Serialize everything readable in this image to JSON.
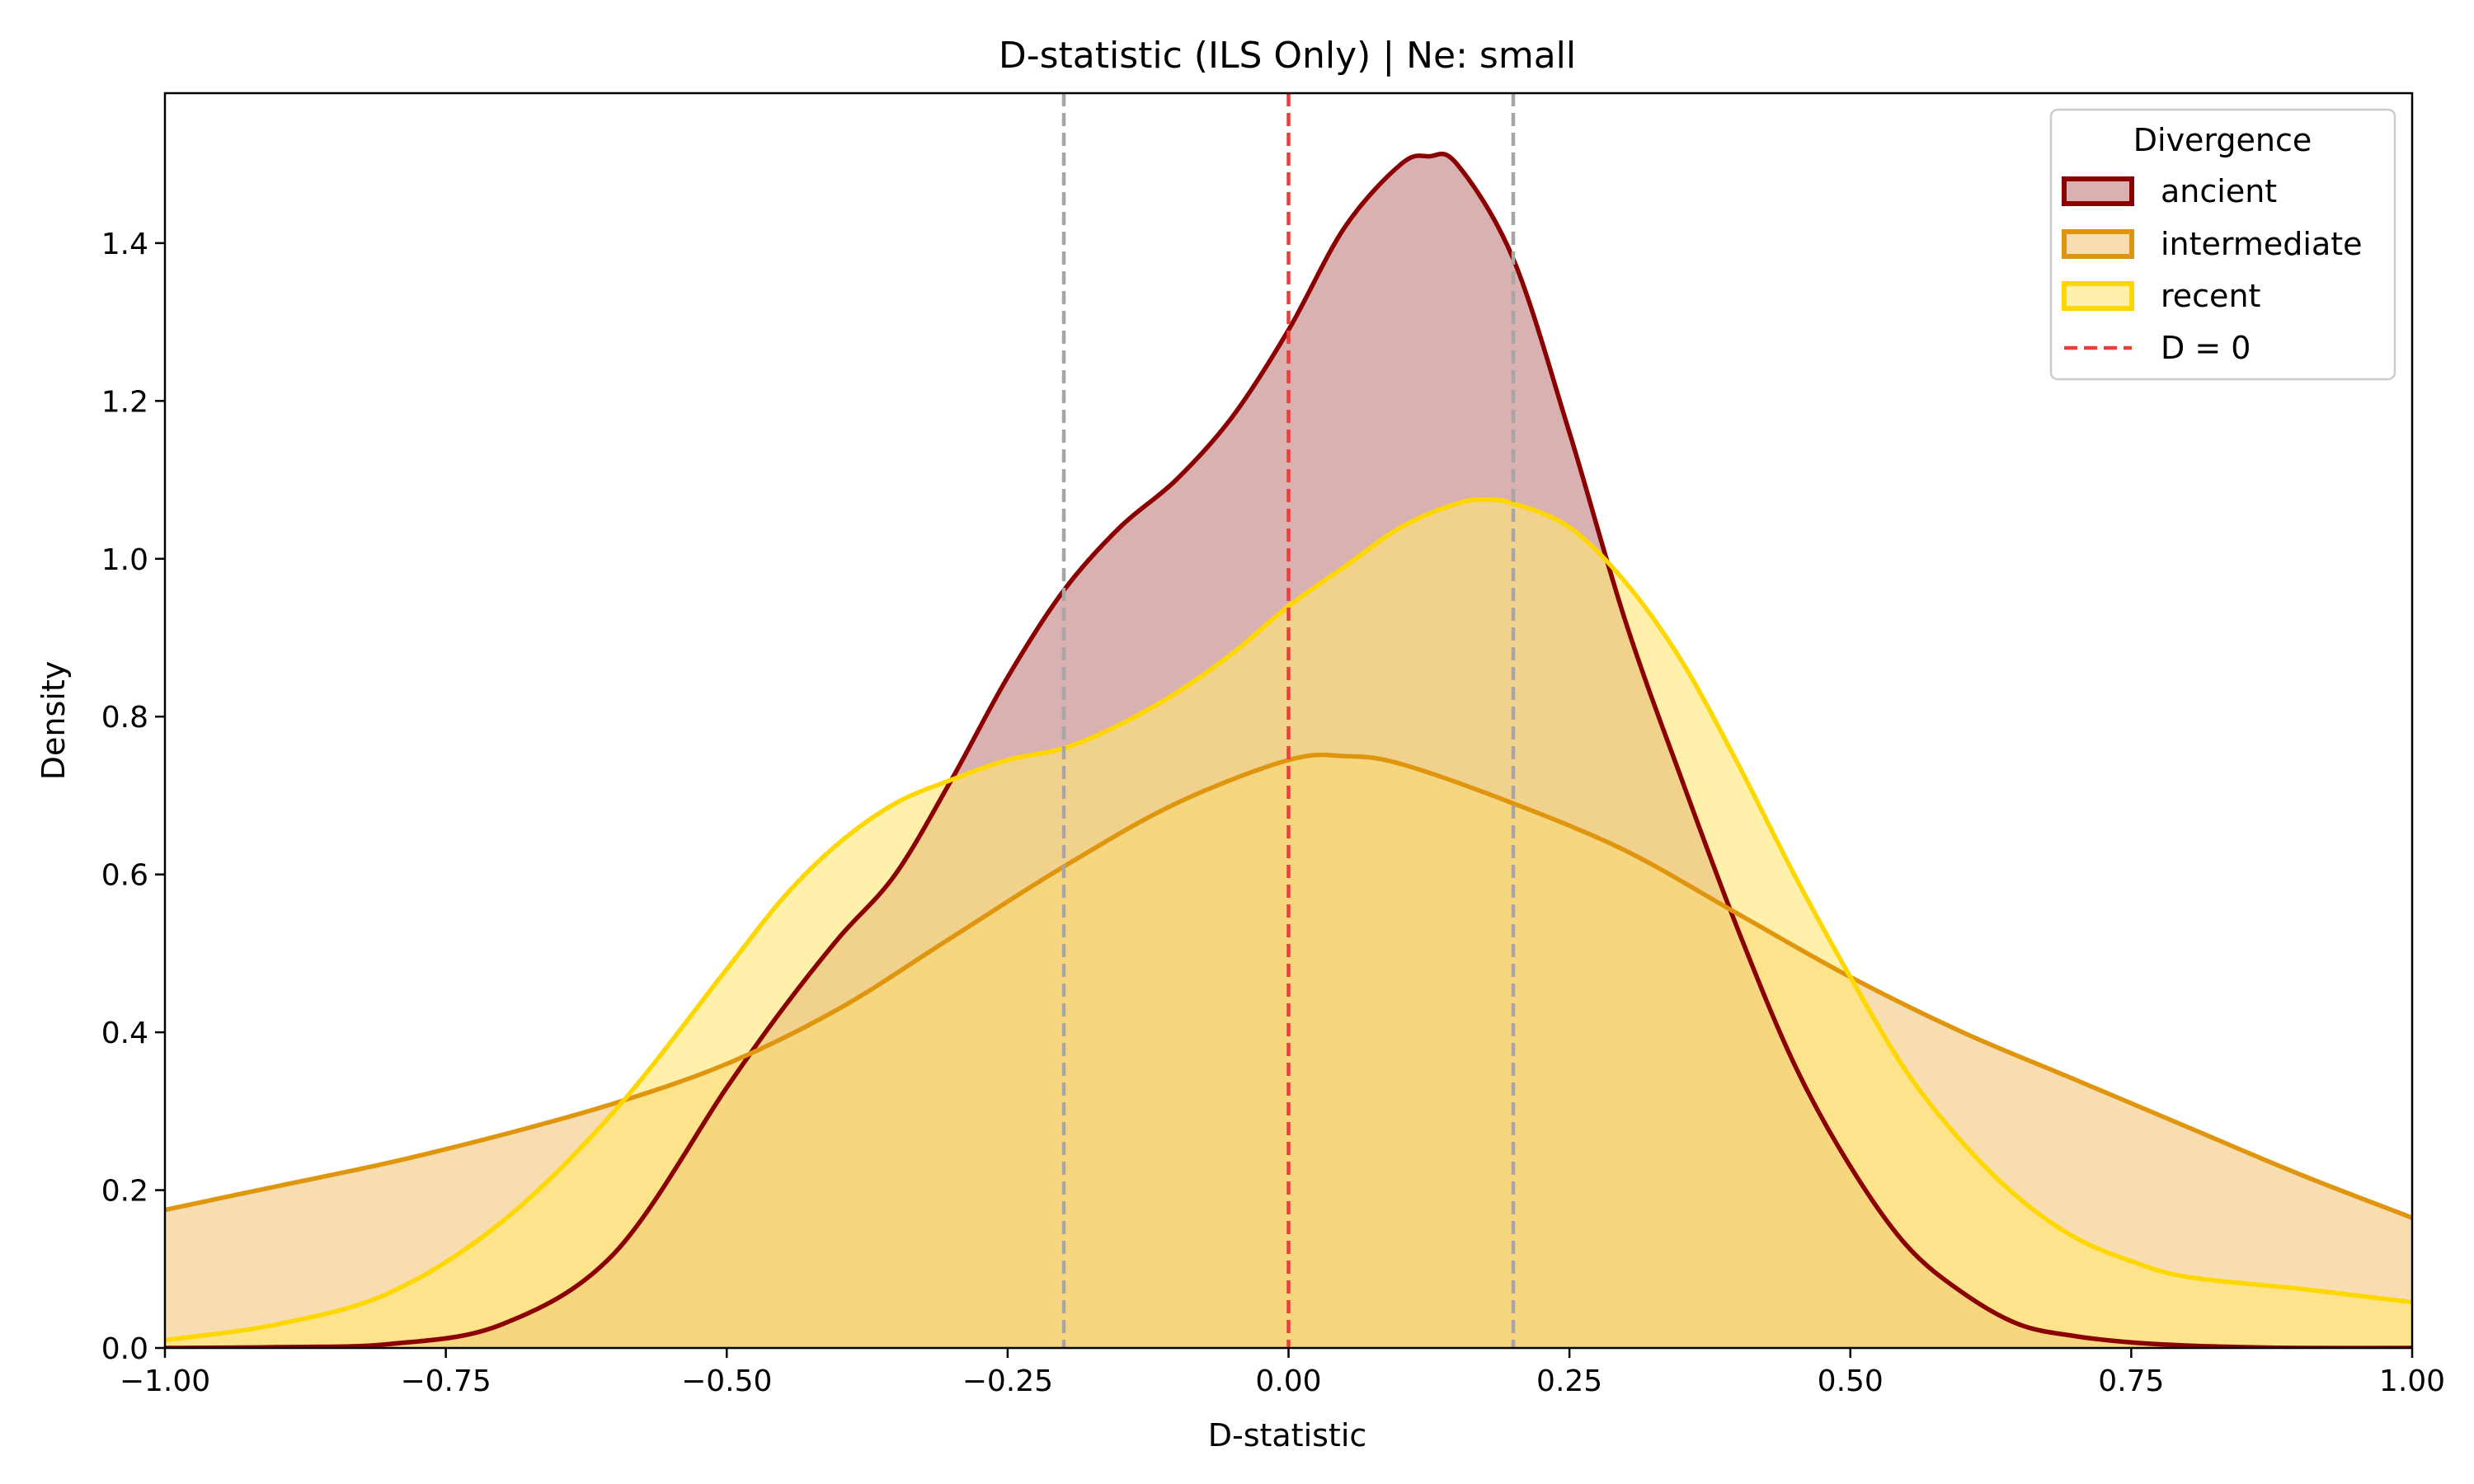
{
  "chart_data": {
    "type": "area",
    "title": "D-statistic (ILS Only) | Ne: small",
    "xlabel": "D-statistic",
    "ylabel": "Density",
    "xlim": [
      -1.0,
      1.0
    ],
    "ylim": [
      0,
      1.59
    ],
    "x_ticks": [
      -1.0,
      -0.75,
      -0.5,
      -0.25,
      0.0,
      0.25,
      0.5,
      0.75,
      1.0
    ],
    "x_tick_labels": [
      "−1.00",
      "−0.75",
      "−0.50",
      "−0.25",
      "0.00",
      "0.25",
      "0.50",
      "0.75",
      "1.00"
    ],
    "y_ticks": [
      0.0,
      0.2,
      0.4,
      0.6,
      0.8,
      1.0,
      1.2,
      1.4
    ],
    "y_tick_labels": [
      "0.0",
      "0.2",
      "0.4",
      "0.6",
      "0.8",
      "1.0",
      "1.2",
      "1.4"
    ],
    "grid": false,
    "legend": {
      "title": "Divergence",
      "position": "top-right",
      "entries": [
        "ancient",
        "intermediate",
        "recent",
        "D = 0"
      ]
    },
    "reference_lines": [
      {
        "x": 0.0,
        "color": "#e8413c",
        "style": "dashed",
        "label": "D = 0"
      },
      {
        "x": -0.2,
        "color": "#a6a6a6",
        "style": "dashed"
      },
      {
        "x": 0.2,
        "color": "#a6a6a6",
        "style": "dashed"
      }
    ],
    "series": [
      {
        "name": "ancient",
        "line_color": "#8b0000",
        "fill_color": "#c17d7d",
        "x": [
          -1.0,
          -0.9,
          -0.8,
          -0.7,
          -0.6,
          -0.5,
          -0.45,
          -0.4,
          -0.35,
          -0.3,
          -0.25,
          -0.2,
          -0.15,
          -0.1,
          -0.05,
          0.0,
          0.05,
          0.1,
          0.125,
          0.15,
          0.2,
          0.25,
          0.3,
          0.35,
          0.4,
          0.45,
          0.5,
          0.55,
          0.6,
          0.65,
          0.7,
          0.75,
          0.8,
          0.85,
          0.9,
          1.0
        ],
        "y": [
          0.0,
          0.001,
          0.005,
          0.03,
          0.12,
          0.33,
          0.43,
          0.52,
          0.6,
          0.72,
          0.85,
          0.96,
          1.04,
          1.1,
          1.18,
          1.29,
          1.42,
          1.5,
          1.51,
          1.5,
          1.38,
          1.16,
          0.92,
          0.72,
          0.53,
          0.36,
          0.23,
          0.13,
          0.07,
          0.03,
          0.015,
          0.007,
          0.003,
          0.001,
          0.0,
          0.0
        ]
      },
      {
        "name": "intermediate",
        "line_color": "#e0950e",
        "fill_color": "#f2c77c",
        "x": [
          -1.0,
          -0.9,
          -0.8,
          -0.7,
          -0.6,
          -0.5,
          -0.4,
          -0.3,
          -0.2,
          -0.1,
          0.0,
          0.05,
          0.1,
          0.2,
          0.3,
          0.4,
          0.5,
          0.6,
          0.7,
          0.8,
          0.9,
          1.0
        ],
        "y": [
          0.175,
          0.205,
          0.235,
          0.27,
          0.31,
          0.36,
          0.43,
          0.52,
          0.61,
          0.69,
          0.745,
          0.75,
          0.74,
          0.69,
          0.63,
          0.55,
          0.47,
          0.4,
          0.34,
          0.28,
          0.22,
          0.165
        ]
      },
      {
        "name": "recent",
        "line_color": "#ffd700",
        "fill_color": "#ffe875",
        "x": [
          -1.0,
          -0.9,
          -0.8,
          -0.7,
          -0.6,
          -0.5,
          -0.45,
          -0.4,
          -0.35,
          -0.3,
          -0.25,
          -0.2,
          -0.15,
          -0.1,
          -0.05,
          0.0,
          0.05,
          0.1,
          0.15,
          0.175,
          0.2,
          0.25,
          0.3,
          0.35,
          0.4,
          0.45,
          0.5,
          0.55,
          0.6,
          0.65,
          0.7,
          0.75,
          0.8,
          0.9,
          1.0
        ],
        "y": [
          0.01,
          0.03,
          0.07,
          0.16,
          0.3,
          0.48,
          0.57,
          0.64,
          0.69,
          0.72,
          0.745,
          0.76,
          0.79,
          0.83,
          0.88,
          0.94,
          0.99,
          1.04,
          1.07,
          1.075,
          1.07,
          1.04,
          0.97,
          0.87,
          0.74,
          0.6,
          0.47,
          0.35,
          0.26,
          0.19,
          0.14,
          0.11,
          0.09,
          0.075,
          0.058
        ]
      }
    ]
  }
}
